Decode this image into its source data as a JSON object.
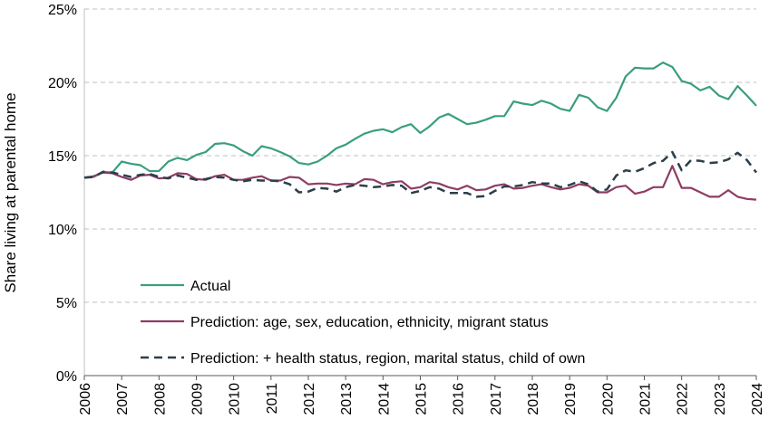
{
  "chart_data": {
    "type": "line",
    "title": "",
    "xlabel": "",
    "ylabel": "Share living at parental home",
    "xlim": [
      2006,
      2024
    ],
    "ylim": [
      0,
      25
    ],
    "y_tick_values": [
      0,
      5,
      10,
      15,
      20,
      25
    ],
    "y_tick_labels": [
      "0%",
      "5%",
      "10%",
      "15%",
      "20%",
      "25%"
    ],
    "x_tick_values": [
      2006,
      2007,
      2008,
      2009,
      2010,
      2011,
      2012,
      2013,
      2014,
      2015,
      2016,
      2017,
      2018,
      2019,
      2020,
      2021,
      2022,
      2023,
      2024
    ],
    "x_tick_labels": [
      "2006",
      "2007",
      "2008",
      "2009",
      "2010",
      "2011",
      "2012",
      "2013",
      "2014",
      "2015",
      "2016",
      "2017",
      "2018",
      "2019",
      "2020",
      "2021",
      "2022",
      "2023",
      "2024"
    ],
    "grid": "horizontal dashed",
    "legend_position": "bottom-left",
    "x": [
      2006.0,
      2006.25,
      2006.5,
      2006.75,
      2007.0,
      2007.25,
      2007.5,
      2007.75,
      2008.0,
      2008.25,
      2008.5,
      2008.75,
      2009.0,
      2009.25,
      2009.5,
      2009.75,
      2010.0,
      2010.25,
      2010.5,
      2010.75,
      2011.0,
      2011.25,
      2011.5,
      2011.75,
      2012.0,
      2012.25,
      2012.5,
      2012.75,
      2013.0,
      2013.25,
      2013.5,
      2013.75,
      2014.0,
      2014.25,
      2014.5,
      2014.75,
      2015.0,
      2015.25,
      2015.5,
      2015.75,
      2016.0,
      2016.25,
      2016.5,
      2016.75,
      2017.0,
      2017.25,
      2017.5,
      2017.75,
      2018.0,
      2018.25,
      2018.5,
      2018.75,
      2019.0,
      2019.25,
      2019.5,
      2019.75,
      2020.0,
      2020.25,
      2020.5,
      2020.75,
      2021.0,
      2021.25,
      2021.5,
      2021.75,
      2022.0,
      2022.25,
      2022.5,
      2022.75,
      2023.0,
      2023.25,
      2023.5,
      2023.75,
      2024.0
    ],
    "series": [
      {
        "name": "Actual",
        "color": "#3a9e7e",
        "dash": "solid",
        "values": [
          13.5,
          13.55,
          13.9,
          13.85,
          14.6,
          14.45,
          14.35,
          13.95,
          13.95,
          14.6,
          14.85,
          14.7,
          15.05,
          15.25,
          15.8,
          15.85,
          15.7,
          15.3,
          15.0,
          15.65,
          15.5,
          15.25,
          14.95,
          14.5,
          14.4,
          14.6,
          15.0,
          15.5,
          15.75,
          16.15,
          16.5,
          16.7,
          16.8,
          16.6,
          16.95,
          17.15,
          16.55,
          17.0,
          17.6,
          17.85,
          17.5,
          17.15,
          17.25,
          17.45,
          17.7,
          17.7,
          18.7,
          18.55,
          18.45,
          18.75,
          18.55,
          18.2,
          18.05,
          19.15,
          18.95,
          18.3,
          18.05,
          18.95,
          20.4,
          21.0,
          20.95,
          20.95,
          21.35,
          21.05,
          20.1,
          19.9,
          19.45,
          19.7,
          19.1,
          18.85,
          19.75,
          19.1,
          18.4
        ]
      },
      {
        "name": "Prediction: age, sex, education, ethnicity, migrant status",
        "color": "#8e3c64",
        "dash": "solid",
        "values": [
          13.5,
          13.6,
          13.85,
          13.8,
          13.55,
          13.35,
          13.65,
          13.7,
          13.45,
          13.5,
          13.8,
          13.75,
          13.4,
          13.35,
          13.6,
          13.7,
          13.35,
          13.35,
          13.5,
          13.6,
          13.3,
          13.3,
          13.55,
          13.5,
          13.05,
          13.1,
          13.1,
          13.0,
          13.1,
          13.05,
          13.4,
          13.35,
          13.05,
          13.2,
          13.25,
          12.75,
          12.85,
          13.2,
          13.1,
          12.85,
          12.7,
          12.95,
          12.65,
          12.7,
          12.95,
          13.05,
          12.75,
          12.8,
          12.95,
          13.05,
          12.85,
          12.7,
          12.8,
          13.05,
          12.95,
          12.5,
          12.5,
          12.85,
          12.95,
          12.4,
          12.55,
          12.85,
          12.85,
          14.3,
          12.8,
          12.8,
          12.5,
          12.2,
          12.2,
          12.65,
          12.2,
          12.05,
          12.0
        ]
      },
      {
        "name": "Prediction: + health status, region, marital status, child of own",
        "color": "#2a3f4a",
        "dash": "dashed",
        "values": [
          13.5,
          13.55,
          13.9,
          13.85,
          13.7,
          13.55,
          13.7,
          13.75,
          13.55,
          13.45,
          13.65,
          13.5,
          13.35,
          13.4,
          13.55,
          13.5,
          13.35,
          13.25,
          13.35,
          13.3,
          13.3,
          13.25,
          13.05,
          12.5,
          12.55,
          12.8,
          12.75,
          12.55,
          12.85,
          13.0,
          12.95,
          12.85,
          12.9,
          13.0,
          12.95,
          12.45,
          12.6,
          12.85,
          12.75,
          12.45,
          12.45,
          12.45,
          12.2,
          12.25,
          12.6,
          12.9,
          12.9,
          13.0,
          13.2,
          13.1,
          13.1,
          12.85,
          13.0,
          13.25,
          13.05,
          12.55,
          12.7,
          13.65,
          14.0,
          13.9,
          14.15,
          14.5,
          14.65,
          15.25,
          14.0,
          14.7,
          14.65,
          14.5,
          14.55,
          14.75,
          15.2,
          14.7,
          13.85
        ]
      }
    ]
  }
}
